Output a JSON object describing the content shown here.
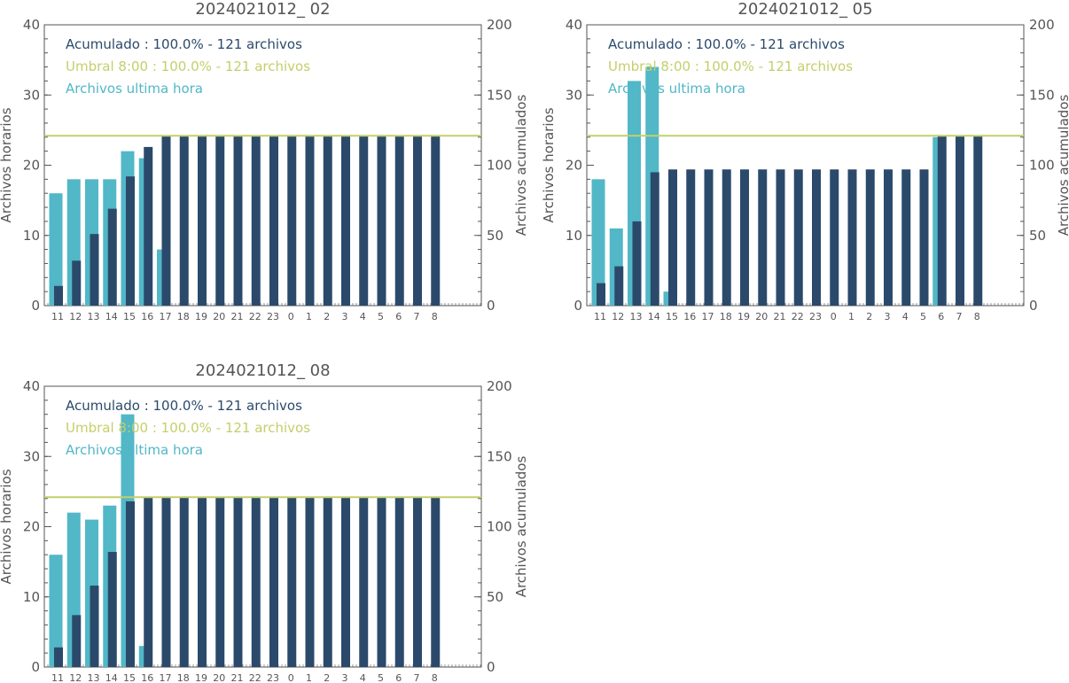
{
  "colors": {
    "hourly": "#52b7c7",
    "cumulative": "#2b4a6b",
    "threshold": "#c4cf6a",
    "axis": "#555555"
  },
  "chart_data": [
    {
      "type": "bar",
      "title": "2024021012_ 02",
      "ylabel": "Archivos horarios",
      "ylabel_right": "Archivos acumulados",
      "ylim": [
        0,
        40
      ],
      "ylim_right": [
        0,
        200
      ],
      "yticks": [
        "0",
        "10",
        "20",
        "30",
        "40"
      ],
      "yticks_right": [
        "0",
        "50",
        "100",
        "150",
        "200"
      ],
      "categories": [
        "11",
        "12",
        "13",
        "14",
        "15",
        "16",
        "17",
        "18",
        "19",
        "20",
        "21",
        "22",
        "23",
        "0",
        "1",
        "2",
        "3",
        "4",
        "5",
        "6",
        "7",
        "8"
      ],
      "threshold": 121,
      "legend": [
        {
          "label": "Acumulado : 100.0% - 121 archivos",
          "color": "#2b4a6b"
        },
        {
          "label": "Umbral 8:00 : 100.0% - 121 archivos",
          "color": "#c4cf6a"
        },
        {
          "label": "Archivos ultima hora",
          "color": "#52b7c7"
        }
      ],
      "series": [
        {
          "values": [
            16,
            18,
            18,
            18,
            22,
            21,
            8,
            0,
            0,
            0,
            0,
            0,
            0,
            0,
            0,
            0,
            0,
            0,
            0,
            0,
            0,
            0
          ]
        },
        {
          "values": [
            14,
            32,
            51,
            69,
            92,
            113,
            121,
            121,
            121,
            121,
            121,
            121,
            121,
            121,
            121,
            121,
            121,
            121,
            121,
            121,
            121,
            121
          ]
        }
      ]
    },
    {
      "type": "bar",
      "title": "2024021012_ 05",
      "ylabel": "Archivos horarios",
      "ylabel_right": "Archivos acumulados",
      "ylim": [
        0,
        40
      ],
      "ylim_right": [
        0,
        200
      ],
      "yticks": [
        "0",
        "10",
        "20",
        "30",
        "40"
      ],
      "yticks_right": [
        "0",
        "50",
        "100",
        "150",
        "200"
      ],
      "categories": [
        "11",
        "12",
        "13",
        "14",
        "15",
        "16",
        "17",
        "18",
        "19",
        "20",
        "21",
        "22",
        "23",
        "0",
        "1",
        "2",
        "3",
        "4",
        "5",
        "6",
        "7",
        "8"
      ],
      "threshold": 121,
      "legend": [
        {
          "label": "Acumulado : 100.0% - 121 archivos",
          "color": "#2b4a6b"
        },
        {
          "label": "Umbral 8:00 : 100.0% - 121 archivos",
          "color": "#c4cf6a"
        },
        {
          "label": "Archivos ultima hora",
          "color": "#52b7c7"
        }
      ],
      "series": [
        {
          "values": [
            18,
            11,
            32,
            34,
            2,
            0,
            0,
            0,
            0,
            0,
            0,
            0,
            0,
            0,
            0,
            0,
            0,
            0,
            0,
            24,
            0,
            0
          ]
        },
        {
          "values": [
            16,
            28,
            60,
            95,
            97,
            97,
            97,
            97,
            97,
            97,
            97,
            97,
            97,
            97,
            97,
            97,
            97,
            97,
            97,
            121,
            121,
            121
          ]
        }
      ]
    },
    {
      "type": "bar",
      "title": "2024021012_ 08",
      "ylabel": "Archivos horarios",
      "ylabel_right": "Archivos acumulados",
      "ylim": [
        0,
        40
      ],
      "ylim_right": [
        0,
        200
      ],
      "yticks": [
        "0",
        "10",
        "20",
        "30",
        "40"
      ],
      "yticks_right": [
        "0",
        "50",
        "100",
        "150",
        "200"
      ],
      "categories": [
        "11",
        "12",
        "13",
        "14",
        "15",
        "16",
        "17",
        "18",
        "19",
        "20",
        "21",
        "22",
        "23",
        "0",
        "1",
        "2",
        "3",
        "4",
        "5",
        "6",
        "7",
        "8"
      ],
      "threshold": 121,
      "legend": [
        {
          "label": "Acumulado : 100.0% - 121 archivos",
          "color": "#2b4a6b"
        },
        {
          "label": "Umbral 8:00 : 100.0% - 121 archivos",
          "color": "#c4cf6a"
        },
        {
          "label": "Archivos ultima hora",
          "color": "#52b7c7"
        }
      ],
      "series": [
        {
          "values": [
            16,
            22,
            21,
            23,
            36,
            3,
            0,
            0,
            0,
            0,
            0,
            0,
            0,
            0,
            0,
            0,
            0,
            0,
            0,
            0,
            0,
            0
          ]
        },
        {
          "values": [
            14,
            37,
            58,
            82,
            118,
            121,
            121,
            121,
            121,
            121,
            121,
            121,
            121,
            121,
            121,
            121,
            121,
            121,
            121,
            121,
            121,
            121
          ]
        }
      ]
    }
  ]
}
